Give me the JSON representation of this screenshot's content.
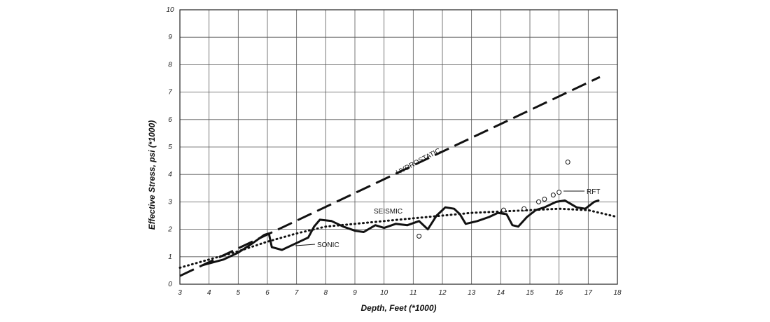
{
  "chart_data": {
    "type": "line",
    "title": "",
    "xlabel": "Depth, Feet (*1000)",
    "ylabel": "Effective Stress, psi (*1000)",
    "xlim": [
      3,
      18
    ],
    "ylim": [
      0,
      10
    ],
    "xticks": [
      "3",
      "4",
      "5",
      "6",
      "7",
      "8",
      "9",
      "10",
      "11",
      "12",
      "13",
      "14",
      "15",
      "16",
      "17",
      "18"
    ],
    "yticks": [
      "0",
      "1",
      "2",
      "3",
      "4",
      "5",
      "6",
      "7",
      "8",
      "9",
      "10"
    ],
    "grid": true,
    "series": [
      {
        "name": "HYDROSTATIC",
        "style": "dashed",
        "x": [
          3,
          17.4
        ],
        "y": [
          0.3,
          7.55
        ]
      },
      {
        "name": "SEISMIC",
        "style": "dotted",
        "x": [
          3,
          4,
          5,
          6,
          7,
          8,
          9,
          10,
          11,
          12,
          13,
          14,
          15,
          16,
          17,
          18
        ],
        "y": [
          0.6,
          0.9,
          1.2,
          1.55,
          1.85,
          2.1,
          2.2,
          2.3,
          2.4,
          2.5,
          2.6,
          2.65,
          2.7,
          2.75,
          2.7,
          2.45
        ]
      },
      {
        "name": "SONIC",
        "style": "solid",
        "x": [
          3.8,
          4.5,
          5,
          5.5,
          5.9,
          6.05,
          6.15,
          6.5,
          7,
          7.4,
          7.6,
          7.8,
          8.2,
          8.6,
          9,
          9.3,
          9.7,
          10,
          10.4,
          10.8,
          11.2,
          11.5,
          11.8,
          12.1,
          12.4,
          12.6,
          12.8,
          13.2,
          13.6,
          13.9,
          14.2,
          14.4,
          14.6,
          14.9,
          15.2,
          15.5,
          15.9,
          16.2,
          16.6,
          16.9,
          17.2,
          17.35
        ],
        "y": [
          0.7,
          0.9,
          1.15,
          1.5,
          1.8,
          1.85,
          1.35,
          1.25,
          1.5,
          1.7,
          2.1,
          2.35,
          2.3,
          2.1,
          1.95,
          1.9,
          2.15,
          2.05,
          2.2,
          2.15,
          2.3,
          2.0,
          2.5,
          2.8,
          2.75,
          2.55,
          2.2,
          2.3,
          2.45,
          2.6,
          2.55,
          2.15,
          2.1,
          2.45,
          2.7,
          2.8,
          3.0,
          3.05,
          2.8,
          2.75,
          3.0,
          3.05
        ]
      },
      {
        "name": "RFT",
        "style": "markers",
        "x": [
          11.2,
          14.1,
          14.8,
          15.3,
          15.5,
          15.8,
          16.0,
          16.3
        ],
        "y": [
          1.75,
          2.7,
          2.75,
          3.0,
          3.1,
          3.25,
          3.35,
          4.45
        ]
      }
    ],
    "annotations": [
      "HYDROSTATIC",
      "SEISMIC",
      "SONIC",
      "RFT"
    ]
  }
}
